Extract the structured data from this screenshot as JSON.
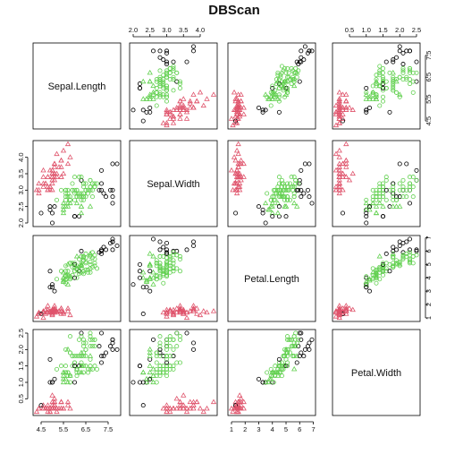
{
  "chart_data": {
    "type": "scatter",
    "title": "DBScan",
    "variables": [
      "Sepal.Length",
      "Sepal.Width",
      "Petal.Length",
      "Petal.Width"
    ],
    "ranges": [
      [
        4.3,
        7.9
      ],
      [
        2.0,
        4.4
      ],
      [
        1.0,
        6.9
      ],
      [
        0.1,
        2.5
      ]
    ],
    "ticks": [
      [
        "4.5",
        "5.5",
        "6.5",
        "7.5"
      ],
      [
        "2.0",
        "2.5",
        "3.0",
        "3.5",
        "4.0"
      ],
      [
        "1",
        "2",
        "3",
        "4",
        "5",
        "6",
        "7"
      ],
      [
        "0.5",
        "1.0",
        "1.5",
        "2.0",
        "2.5"
      ]
    ],
    "tick_sides": {
      "top": [
        1,
        3
      ],
      "bottom": [
        0,
        2
      ],
      "left": [
        1,
        3
      ],
      "right": [
        0,
        2
      ]
    },
    "series": [
      {
        "name": "",
        "color": "#000000",
        "marker": "circle"
      },
      {
        "name": "",
        "color": "#DF536B",
        "marker": "triangle"
      },
      {
        "name": "",
        "color": "#61D04F",
        "marker": "circle"
      },
      {
        "name": "",
        "color": "#61D04F",
        "marker": "triangle"
      }
    ],
    "points": [
      [
        5.1,
        3.5,
        1.4,
        0.2,
        1
      ],
      [
        4.9,
        3.0,
        1.4,
        0.2,
        1
      ],
      [
        4.7,
        3.2,
        1.3,
        0.2,
        1
      ],
      [
        4.6,
        3.1,
        1.5,
        0.2,
        1
      ],
      [
        5.0,
        3.6,
        1.4,
        0.2,
        1
      ],
      [
        5.4,
        3.9,
        1.7,
        0.4,
        1
      ],
      [
        4.6,
        3.4,
        1.4,
        0.3,
        1
      ],
      [
        5.0,
        3.4,
        1.5,
        0.2,
        1
      ],
      [
        4.4,
        2.9,
        1.4,
        0.2,
        1
      ],
      [
        4.9,
        3.1,
        1.5,
        0.1,
        1
      ],
      [
        5.4,
        3.7,
        1.5,
        0.2,
        1
      ],
      [
        4.8,
        3.4,
        1.6,
        0.2,
        1
      ],
      [
        4.8,
        3.0,
        1.4,
        0.1,
        1
      ],
      [
        4.3,
        3.0,
        1.1,
        0.1,
        1
      ],
      [
        5.8,
        4.0,
        1.2,
        0.2,
        1
      ],
      [
        5.7,
        4.4,
        1.5,
        0.4,
        1
      ],
      [
        5.4,
        3.9,
        1.3,
        0.4,
        1
      ],
      [
        5.1,
        3.5,
        1.4,
        0.3,
        1
      ],
      [
        5.7,
        3.8,
        1.7,
        0.3,
        1
      ],
      [
        5.1,
        3.8,
        1.5,
        0.3,
        1
      ],
      [
        5.4,
        3.4,
        1.7,
        0.2,
        1
      ],
      [
        5.1,
        3.7,
        1.5,
        0.4,
        1
      ],
      [
        4.6,
        3.6,
        1.0,
        0.2,
        1
      ],
      [
        5.1,
        3.3,
        1.7,
        0.5,
        1
      ],
      [
        4.8,
        3.4,
        1.9,
        0.2,
        1
      ],
      [
        5.0,
        3.0,
        1.6,
        0.2,
        1
      ],
      [
        5.0,
        3.4,
        1.6,
        0.4,
        1
      ],
      [
        5.2,
        3.5,
        1.5,
        0.2,
        1
      ],
      [
        5.2,
        3.4,
        1.4,
        0.2,
        1
      ],
      [
        4.7,
        3.2,
        1.6,
        0.2,
        1
      ],
      [
        4.8,
        3.1,
        1.6,
        0.2,
        1
      ],
      [
        5.4,
        3.4,
        1.5,
        0.4,
        1
      ],
      [
        5.2,
        4.1,
        1.5,
        0.1,
        1
      ],
      [
        5.5,
        4.2,
        1.4,
        0.2,
        1
      ],
      [
        4.9,
        3.1,
        1.5,
        0.2,
        1
      ],
      [
        5.0,
        3.2,
        1.2,
        0.2,
        1
      ],
      [
        5.5,
        3.5,
        1.3,
        0.2,
        1
      ],
      [
        4.9,
        3.6,
        1.4,
        0.1,
        1
      ],
      [
        4.4,
        3.0,
        1.3,
        0.2,
        1
      ],
      [
        5.1,
        3.4,
        1.5,
        0.2,
        1
      ],
      [
        5.0,
        3.5,
        1.3,
        0.3,
        1
      ],
      [
        4.5,
        2.3,
        1.3,
        0.3,
        0
      ],
      [
        4.4,
        3.2,
        1.3,
        0.2,
        1
      ],
      [
        5.0,
        3.5,
        1.6,
        0.6,
        1
      ],
      [
        5.1,
        3.8,
        1.9,
        0.4,
        1
      ],
      [
        4.8,
        3.0,
        1.4,
        0.3,
        1
      ],
      [
        5.1,
        3.8,
        1.6,
        0.2,
        1
      ],
      [
        4.6,
        3.2,
        1.4,
        0.2,
        1
      ],
      [
        5.3,
        3.7,
        1.5,
        0.2,
        1
      ],
      [
        5.0,
        3.3,
        1.4,
        0.2,
        1
      ],
      [
        7.0,
        3.2,
        4.7,
        1.4,
        2
      ],
      [
        6.4,
        3.2,
        4.5,
        1.5,
        2
      ],
      [
        6.9,
        3.1,
        4.9,
        1.5,
        2
      ],
      [
        5.5,
        2.3,
        4.0,
        1.3,
        3
      ],
      [
        6.5,
        2.8,
        4.6,
        1.5,
        2
      ],
      [
        5.7,
        2.8,
        4.5,
        1.3,
        2
      ],
      [
        6.3,
        3.3,
        4.7,
        1.6,
        2
      ],
      [
        4.9,
        2.4,
        3.3,
        1.0,
        0
      ],
      [
        6.6,
        2.9,
        4.6,
        1.3,
        2
      ],
      [
        5.2,
        2.7,
        3.9,
        1.4,
        2
      ],
      [
        5.0,
        2.0,
        3.5,
        1.0,
        0
      ],
      [
        5.9,
        3.0,
        4.2,
        1.5,
        2
      ],
      [
        6.0,
        2.2,
        4.0,
        1.0,
        0
      ],
      [
        6.1,
        2.9,
        4.7,
        1.4,
        2
      ],
      [
        5.6,
        2.9,
        3.6,
        1.3,
        2
      ],
      [
        6.7,
        3.1,
        4.4,
        1.4,
        2
      ],
      [
        5.6,
        3.0,
        4.5,
        1.5,
        2
      ],
      [
        5.8,
        2.7,
        4.1,
        1.0,
        2
      ],
      [
        6.2,
        2.2,
        4.5,
        1.5,
        0
      ],
      [
        5.6,
        2.5,
        3.9,
        1.1,
        3
      ],
      [
        5.9,
        3.2,
        4.8,
        1.8,
        2
      ],
      [
        6.1,
        2.8,
        4.0,
        1.3,
        2
      ],
      [
        6.3,
        2.5,
        4.9,
        1.5,
        3
      ],
      [
        6.1,
        2.8,
        4.7,
        1.2,
        2
      ],
      [
        6.4,
        2.9,
        4.3,
        1.3,
        2
      ],
      [
        6.6,
        3.0,
        4.4,
        1.4,
        2
      ],
      [
        6.8,
        2.8,
        4.8,
        1.4,
        2
      ],
      [
        6.7,
        3.0,
        5.0,
        1.7,
        2
      ],
      [
        6.0,
        2.9,
        4.5,
        1.5,
        2
      ],
      [
        5.7,
        2.6,
        3.5,
        1.0,
        3
      ],
      [
        5.5,
        2.4,
        3.8,
        1.1,
        3
      ],
      [
        5.5,
        2.4,
        3.7,
        1.0,
        3
      ],
      [
        5.8,
        2.7,
        3.9,
        1.2,
        2
      ],
      [
        6.0,
        2.7,
        5.1,
        1.6,
        2
      ],
      [
        5.4,
        3.0,
        4.5,
        1.5,
        2
      ],
      [
        6.0,
        3.4,
        4.5,
        1.6,
        2
      ],
      [
        6.7,
        3.1,
        4.7,
        1.5,
        2
      ],
      [
        6.3,
        2.3,
        4.4,
        1.3,
        3
      ],
      [
        5.6,
        3.0,
        4.1,
        1.3,
        2
      ],
      [
        5.5,
        2.5,
        4.0,
        1.3,
        3
      ],
      [
        5.5,
        2.6,
        4.4,
        1.2,
        3
      ],
      [
        6.1,
        3.0,
        4.6,
        1.4,
        2
      ],
      [
        5.8,
        2.6,
        4.0,
        1.2,
        3
      ],
      [
        5.0,
        2.3,
        3.3,
        1.0,
        0
      ],
      [
        5.6,
        2.7,
        4.2,
        1.3,
        2
      ],
      [
        5.7,
        3.0,
        4.2,
        1.2,
        2
      ],
      [
        5.7,
        2.9,
        4.2,
        1.3,
        2
      ],
      [
        6.2,
        2.9,
        4.3,
        1.3,
        2
      ],
      [
        5.1,
        2.5,
        3.0,
        1.1,
        0
      ],
      [
        5.7,
        2.8,
        4.1,
        1.3,
        2
      ],
      [
        6.3,
        3.3,
        6.0,
        2.5,
        0
      ],
      [
        5.8,
        2.7,
        5.1,
        1.9,
        2
      ],
      [
        7.1,
        3.0,
        5.9,
        2.1,
        0
      ],
      [
        6.3,
        2.9,
        5.6,
        1.8,
        2
      ],
      [
        6.5,
        3.0,
        5.8,
        2.2,
        2
      ],
      [
        7.6,
        3.0,
        6.6,
        2.1,
        0
      ],
      [
        4.9,
        2.5,
        4.5,
        1.7,
        0
      ],
      [
        7.3,
        2.9,
        6.3,
        1.8,
        0
      ],
      [
        6.7,
        2.5,
        5.8,
        1.8,
        3
      ],
      [
        7.2,
        3.6,
        6.1,
        2.5,
        0
      ],
      [
        6.5,
        3.2,
        5.1,
        2.0,
        2
      ],
      [
        6.4,
        2.7,
        5.3,
        1.9,
        2
      ],
      [
        6.8,
        3.0,
        5.5,
        2.1,
        2
      ],
      [
        5.7,
        2.5,
        5.0,
        2.0,
        3
      ],
      [
        5.8,
        2.8,
        5.1,
        2.4,
        2
      ],
      [
        6.4,
        3.2,
        5.3,
        2.3,
        2
      ],
      [
        6.5,
        3.0,
        5.5,
        1.8,
        2
      ],
      [
        7.7,
        3.8,
        6.7,
        2.2,
        0
      ],
      [
        7.7,
        2.6,
        6.9,
        2.3,
        0
      ],
      [
        6.0,
        2.2,
        5.0,
        1.5,
        0
      ],
      [
        6.9,
        3.2,
        5.7,
        2.3,
        2
      ],
      [
        5.6,
        2.8,
        4.9,
        2.0,
        2
      ],
      [
        7.7,
        2.8,
        6.7,
        2.0,
        0
      ],
      [
        6.3,
        2.7,
        4.9,
        1.8,
        2
      ],
      [
        6.7,
        3.3,
        5.7,
        2.1,
        2
      ],
      [
        7.2,
        3.2,
        6.0,
        1.8,
        0
      ],
      [
        6.2,
        2.8,
        4.8,
        1.8,
        2
      ],
      [
        6.1,
        3.0,
        4.9,
        1.8,
        2
      ],
      [
        6.4,
        2.8,
        5.6,
        2.1,
        2
      ],
      [
        7.2,
        3.0,
        5.8,
        1.6,
        0
      ],
      [
        7.4,
        2.8,
        6.1,
        1.9,
        0
      ],
      [
        7.9,
        3.8,
        6.4,
        2.0,
        0
      ],
      [
        6.4,
        2.8,
        5.6,
        2.2,
        2
      ],
      [
        6.3,
        2.8,
        5.1,
        1.5,
        2
      ],
      [
        6.1,
        2.6,
        5.6,
        1.4,
        3
      ],
      [
        7.7,
        3.0,
        6.1,
        2.3,
        0
      ],
      [
        6.3,
        3.4,
        5.6,
        2.4,
        2
      ],
      [
        6.4,
        3.1,
        5.5,
        1.8,
        2
      ],
      [
        6.0,
        3.0,
        4.8,
        1.8,
        2
      ],
      [
        6.9,
        3.1,
        5.4,
        2.1,
        2
      ],
      [
        6.7,
        3.1,
        5.6,
        2.4,
        2
      ],
      [
        6.9,
        3.1,
        5.1,
        2.3,
        2
      ],
      [
        5.8,
        2.7,
        5.1,
        1.9,
        2
      ],
      [
        6.8,
        3.2,
        5.9,
        2.3,
        2
      ],
      [
        6.7,
        3.3,
        5.7,
        2.5,
        2
      ],
      [
        6.7,
        3.0,
        5.2,
        2.3,
        2
      ],
      [
        6.3,
        2.5,
        5.0,
        1.9,
        3
      ],
      [
        6.5,
        3.0,
        5.2,
        2.0,
        2
      ],
      [
        6.2,
        3.4,
        5.4,
        2.3,
        2
      ],
      [
        5.9,
        3.0,
        5.1,
        1.8,
        2
      ]
    ]
  }
}
